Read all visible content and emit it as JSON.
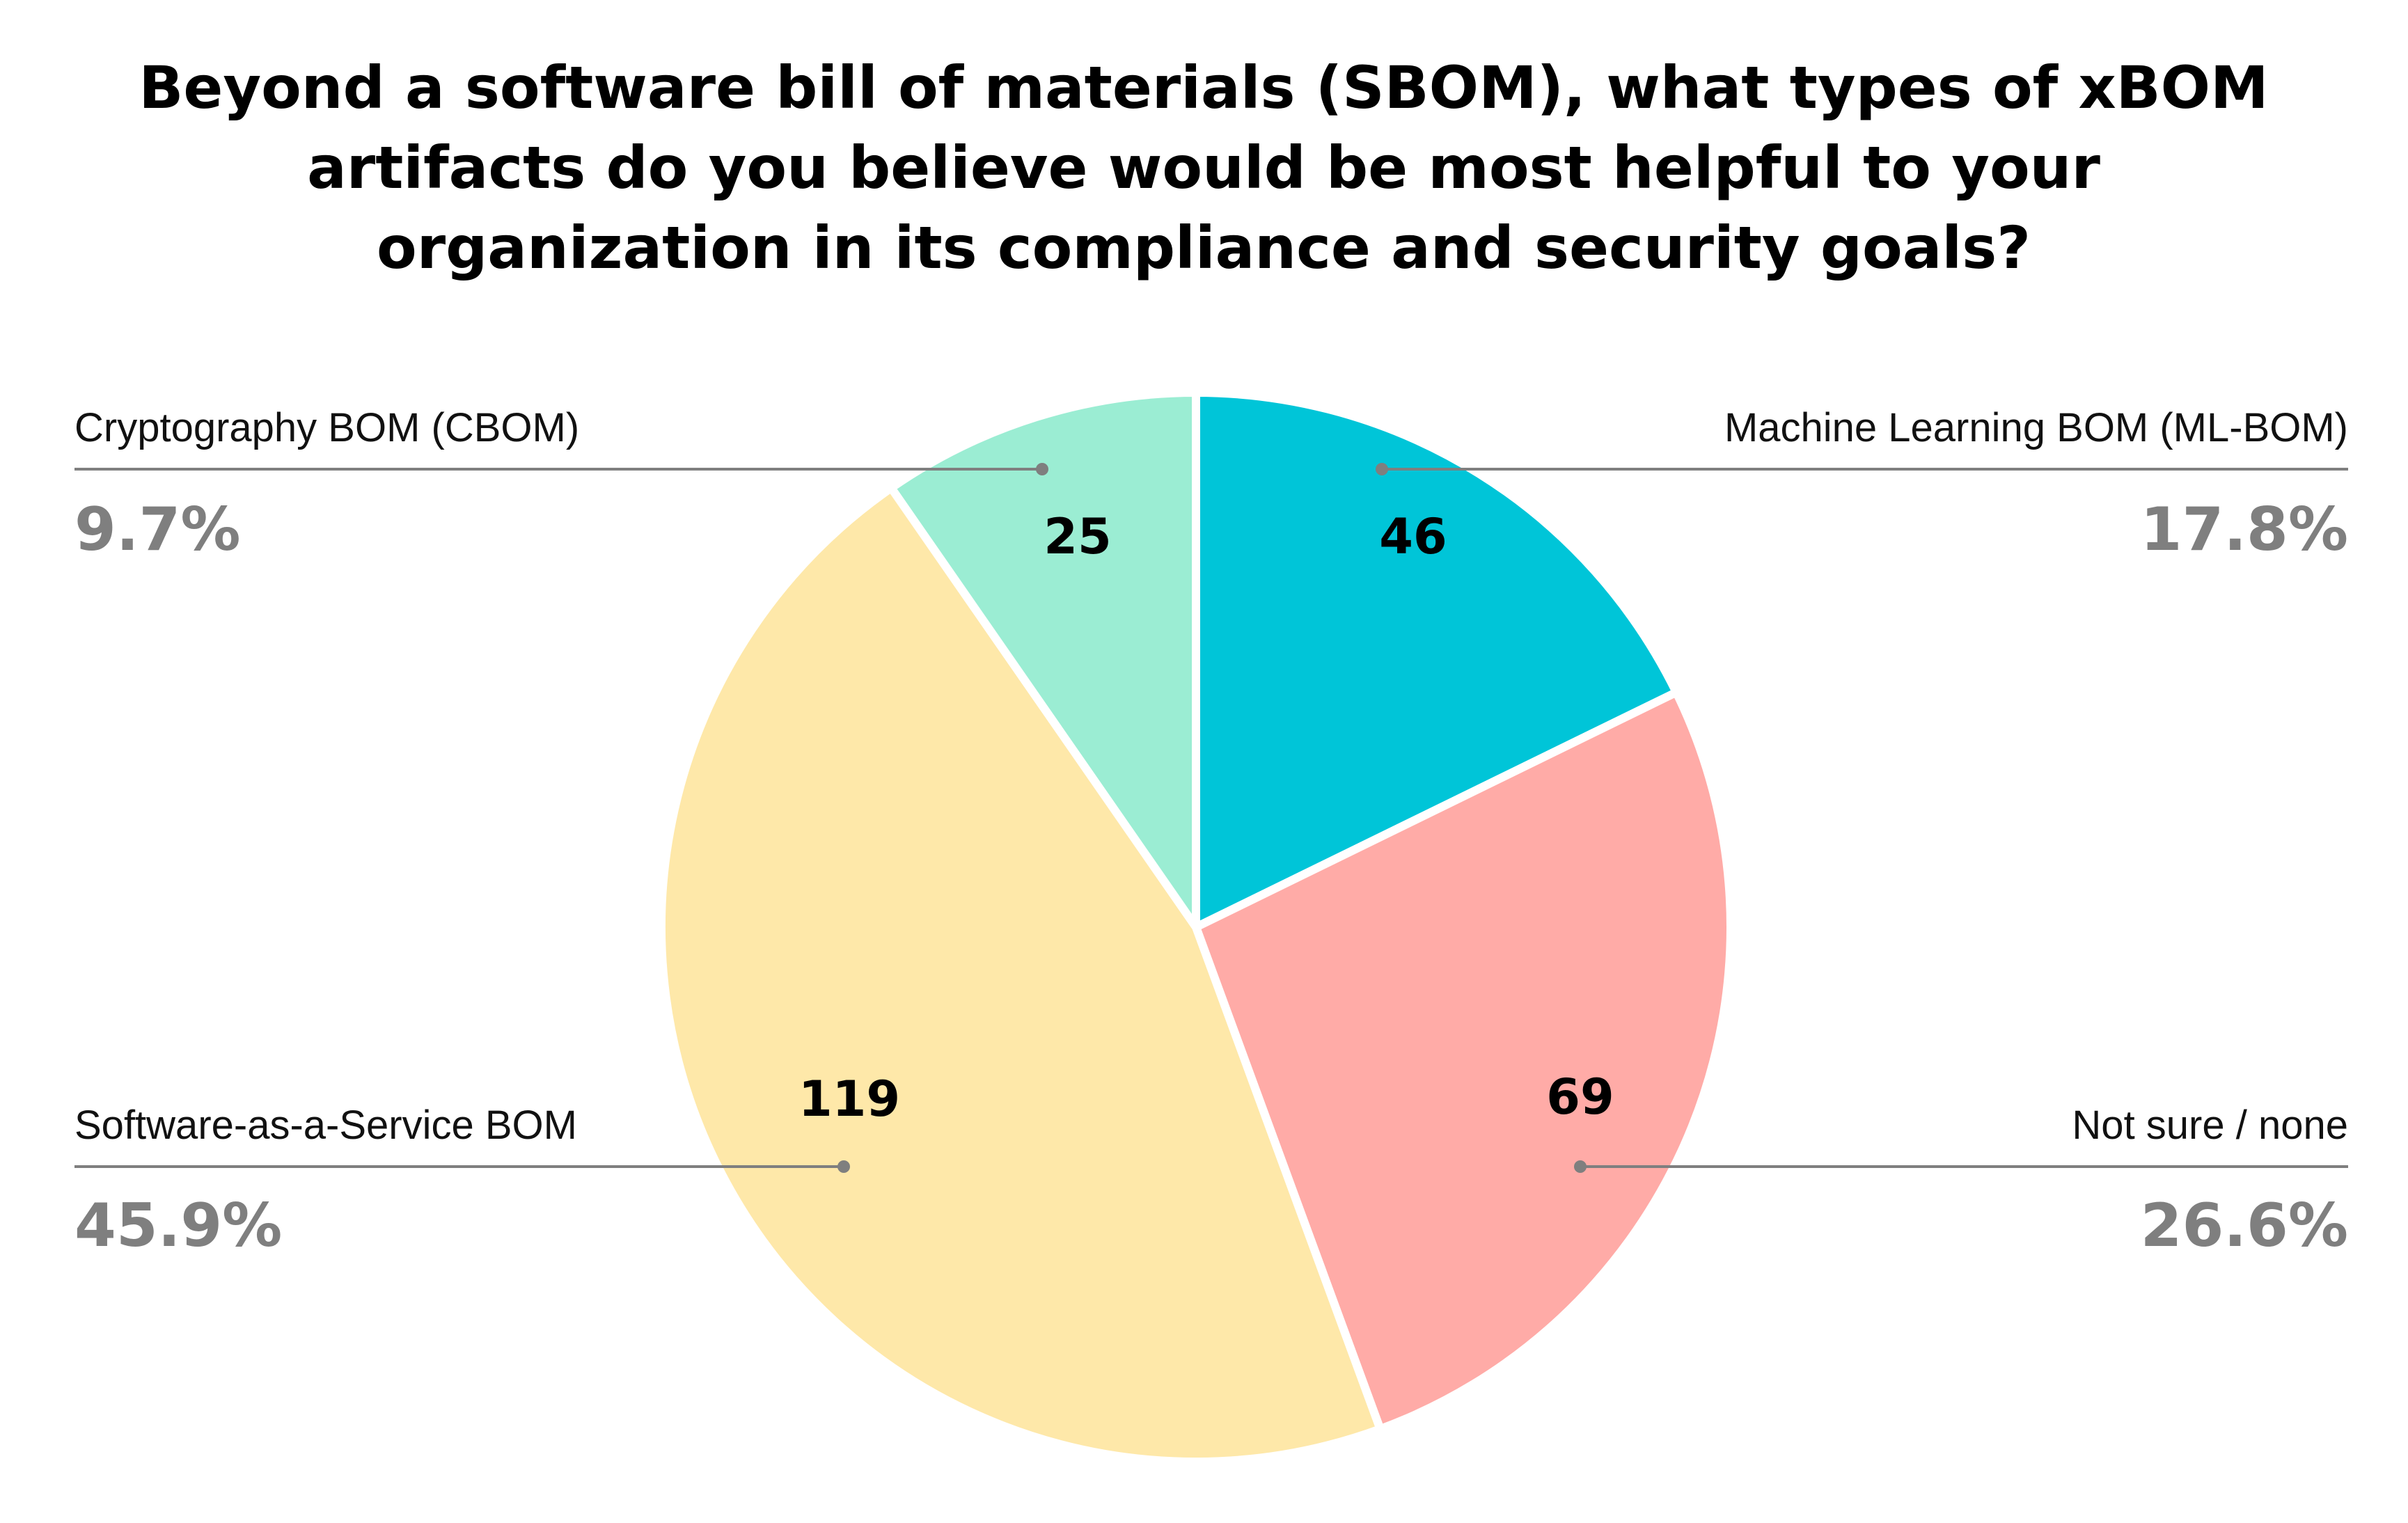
{
  "chart_data": {
    "type": "pie",
    "title_lines": [
      "Beyond a software bill of materials (SBOM), what types of xBOM",
      "artifacts do you believe would be most helpful to your",
      "organization in its compliance and security goals?"
    ],
    "slices": [
      {
        "name": "Machine Learning BOM (ML-BOM)",
        "value": 46,
        "percent_label": "17.8%",
        "color": "#00c5d8",
        "side": "right"
      },
      {
        "name": "Not sure / none",
        "value": 69,
        "percent_label": "26.6%",
        "color": "#ffaba7",
        "side": "right"
      },
      {
        "name": "Software-as-a-Service BOM",
        "value": 119,
        "percent_label": "45.9%",
        "color": "#fee8a9",
        "side": "left"
      },
      {
        "name": "Cryptography BOM (CBOM)",
        "value": 25,
        "percent_label": "9.7%",
        "color": "#9bedd3",
        "side": "left"
      }
    ],
    "start_angle": "12 o'clock",
    "direction": "clockwise",
    "legend": "none"
  }
}
